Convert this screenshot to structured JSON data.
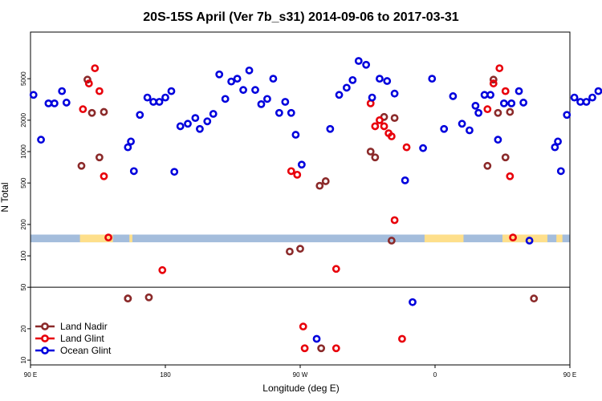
{
  "chart_data": {
    "type": "scatter",
    "title": "20S-15S April (Ver 7b_s31)   2014-09-06 to 2017-03-31",
    "xlabel": "Longitude (deg E)",
    "ylabel": "N Total",
    "x_range": [
      90,
      450
    ],
    "x_ticks": [
      {
        "value": 90,
        "label": "90 E"
      },
      {
        "value": 180,
        "label": "180"
      },
      {
        "value": 270,
        "label": "90 W"
      },
      {
        "value": 360,
        "label": "0"
      },
      {
        "value": 450,
        "label": "90 E"
      },
      {
        "value": 540,
        "label": "180"
      }
    ],
    "y_scale": "log",
    "y_range": [
      9,
      14000
    ],
    "y_ticks": [
      10,
      20,
      50,
      100,
      200,
      500,
      1000,
      2000,
      5000
    ],
    "y_split": 50,
    "legend_position": "bottom-left",
    "land_band": {
      "y_low": 135,
      "y_high": 160,
      "ocean_color": "#a4bddc",
      "land_color": "#fedf8b",
      "land_spans": [
        [
          123,
          145
        ],
        [
          156,
          158
        ],
        [
          353,
          379
        ],
        [
          405,
          435
        ],
        [
          441,
          445
        ],
        [
          477,
          500
        ]
      ]
    },
    "series": [
      {
        "name": "Land Nadir",
        "color": "#8b2a2a",
        "points": [
          [
            124,
            730
          ],
          [
            128,
            4900
          ],
          [
            131,
            2350
          ],
          [
            136,
            880
          ],
          [
            139,
            2400
          ],
          [
            155,
            39
          ],
          [
            155,
            39
          ],
          [
            169,
            40
          ],
          [
            263,
            110
          ],
          [
            270,
            117
          ],
          [
            283,
            470
          ],
          [
            287,
            520
          ],
          [
            284,
            13
          ],
          [
            317,
            1000
          ],
          [
            320,
            880
          ],
          [
            326,
            2150
          ],
          [
            331,
            140
          ],
          [
            333,
            2100
          ],
          [
            395,
            730
          ],
          [
            399,
            4900
          ],
          [
            402,
            2350
          ],
          [
            407,
            880
          ],
          [
            410,
            2400
          ],
          [
            426,
            39
          ]
        ]
      },
      {
        "name": "Land Glint",
        "color": "#e8000b",
        "points": [
          [
            125,
            2550
          ],
          [
            129,
            4500
          ],
          [
            133,
            6300
          ],
          [
            136,
            3800
          ],
          [
            139,
            580
          ],
          [
            142,
            150
          ],
          [
            178,
            73
          ],
          [
            264,
            650
          ],
          [
            268,
            600
          ],
          [
            272,
            21
          ],
          [
            273,
            13
          ],
          [
            294,
            13
          ],
          [
            294,
            75
          ],
          [
            317,
            2900
          ],
          [
            320,
            1750
          ],
          [
            323,
            2000
          ],
          [
            326,
            1750
          ],
          [
            329,
            1500
          ],
          [
            331,
            1400
          ],
          [
            333,
            220
          ],
          [
            338,
            16
          ],
          [
            341,
            1100
          ],
          [
            395,
            2550
          ],
          [
            399,
            4500
          ],
          [
            403,
            6300
          ],
          [
            407,
            3800
          ],
          [
            410,
            580
          ],
          [
            412,
            150
          ]
        ]
      },
      {
        "name": "Ocean Glint",
        "color": "#0000dd",
        "points": [
          [
            92,
            3500
          ],
          [
            97,
            1300
          ],
          [
            102,
            2900
          ],
          [
            106,
            2900
          ],
          [
            111,
            3800
          ],
          [
            114,
            2950
          ],
          [
            155,
            1100
          ],
          [
            157,
            1250
          ],
          [
            159,
            650
          ],
          [
            163,
            2250
          ],
          [
            168,
            3300
          ],
          [
            172,
            3000
          ],
          [
            176,
            3000
          ],
          [
            180,
            3300
          ],
          [
            184,
            3800
          ],
          [
            186,
            640
          ],
          [
            190,
            1750
          ],
          [
            195,
            1850
          ],
          [
            200,
            2100
          ],
          [
            203,
            1650
          ],
          [
            208,
            1950
          ],
          [
            212,
            2300
          ],
          [
            216,
            5500
          ],
          [
            220,
            3200
          ],
          [
            224,
            4700
          ],
          [
            228,
            5000
          ],
          [
            232,
            3900
          ],
          [
            236,
            6000
          ],
          [
            240,
            3900
          ],
          [
            244,
            2850
          ],
          [
            248,
            3200
          ],
          [
            252,
            5000
          ],
          [
            256,
            2350
          ],
          [
            260,
            3000
          ],
          [
            264,
            2350
          ],
          [
            267,
            1450
          ],
          [
            271,
            750
          ],
          [
            281,
            16
          ],
          [
            290,
            1650
          ],
          [
            296,
            3500
          ],
          [
            301,
            4100
          ],
          [
            305,
            4850
          ],
          [
            309,
            7400
          ],
          [
            314,
            6800
          ],
          [
            318,
            3300
          ],
          [
            323,
            5000
          ],
          [
            328,
            4750
          ],
          [
            333,
            3600
          ],
          [
            340,
            530
          ],
          [
            345,
            36
          ],
          [
            352,
            1080
          ],
          [
            358,
            5000
          ],
          [
            366,
            1650
          ],
          [
            372,
            3400
          ],
          [
            378,
            1850
          ],
          [
            383,
            1600
          ],
          [
            387,
            2750
          ],
          [
            389,
            2350
          ],
          [
            393,
            3500
          ],
          [
            397,
            3500
          ],
          [
            402,
            1300
          ],
          [
            406,
            2900
          ],
          [
            411,
            2900
          ],
          [
            416,
            3800
          ],
          [
            419,
            2950
          ],
          [
            423,
            140
          ],
          [
            440,
            1100
          ],
          [
            442,
            1250
          ],
          [
            444,
            650
          ],
          [
            448,
            2250
          ],
          [
            453,
            3300
          ],
          [
            457,
            3000
          ],
          [
            461,
            3000
          ],
          [
            465,
            3300
          ],
          [
            469,
            3800
          ]
        ]
      }
    ]
  }
}
